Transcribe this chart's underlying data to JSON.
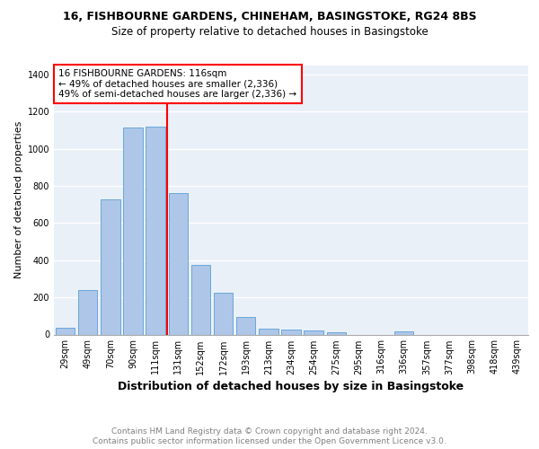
{
  "title": "16, FISHBOURNE GARDENS, CHINEHAM, BASINGSTOKE, RG24 8BS",
  "subtitle": "Size of property relative to detached houses in Basingstoke",
  "xlabel": "Distribution of detached houses by size in Basingstoke",
  "ylabel": "Number of detached properties",
  "categories": [
    "29sqm",
    "49sqm",
    "70sqm",
    "90sqm",
    "111sqm",
    "131sqm",
    "152sqm",
    "172sqm",
    "193sqm",
    "213sqm",
    "234sqm",
    "254sqm",
    "275sqm",
    "295sqm",
    "316sqm",
    "336sqm",
    "357sqm",
    "377sqm",
    "398sqm",
    "418sqm",
    "439sqm"
  ],
  "values": [
    35,
    237,
    727,
    1113,
    1120,
    760,
    375,
    225,
    93,
    32,
    25,
    20,
    12,
    0,
    0,
    15,
    0,
    0,
    0,
    0,
    0
  ],
  "bar_color": "#aec6e8",
  "bar_edge_color": "#5a9fd4",
  "vline_x": 4.5,
  "vline_color": "red",
  "annotation_text": "16 FISHBOURNE GARDENS: 116sqm\n← 49% of detached houses are smaller (2,336)\n49% of semi-detached houses are larger (2,336) →",
  "annotation_box_color": "white",
  "annotation_box_edge": "red",
  "ylim": [
    0,
    1450
  ],
  "yticks": [
    0,
    200,
    400,
    600,
    800,
    1000,
    1200,
    1400
  ],
  "background_color": "#eaf0f8",
  "grid_color": "white",
  "footer_line1": "Contains HM Land Registry data © Crown copyright and database right 2024.",
  "footer_line2": "Contains public sector information licensed under the Open Government Licence v3.0.",
  "title_fontsize": 9,
  "subtitle_fontsize": 8.5,
  "xlabel_fontsize": 9,
  "ylabel_fontsize": 8,
  "tick_fontsize": 7,
  "annotation_fontsize": 7.5,
  "footer_fontsize": 6.5
}
